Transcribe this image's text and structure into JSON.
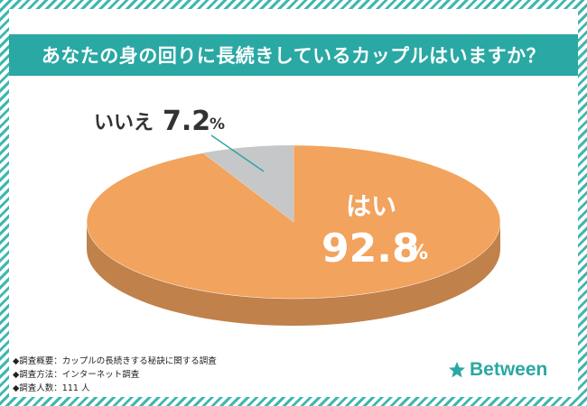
{
  "title": "あなたの身の回りに長続きしているカップルはいますか？",
  "chart_data": {
    "type": "pie",
    "title": "あなたの身の回りに長続きしているカップルはいますか？",
    "slices": [
      {
        "label": "はい",
        "value": 92.8,
        "display_number": "92.8",
        "unit": "%",
        "color": "#f2a35d"
      },
      {
        "label": "いいえ",
        "value": 7.2,
        "display_number": "7.2",
        "unit": "%",
        "color": "#c6c7c8"
      }
    ],
    "style": "3d",
    "legend": "none"
  },
  "notes": [
    "◆調査概要：カップルの長続きする秘訣に関する調査",
    "◆調査方法：インターネット調査",
    "◆調査人数：111 人"
  ],
  "brand": {
    "name": "Between",
    "icon": "star-icon",
    "color": "#2aa8a3"
  },
  "colors": {
    "accent": "#2aa8a3",
    "yes_side": "#c1814a",
    "no_side": "#a9aaab"
  }
}
